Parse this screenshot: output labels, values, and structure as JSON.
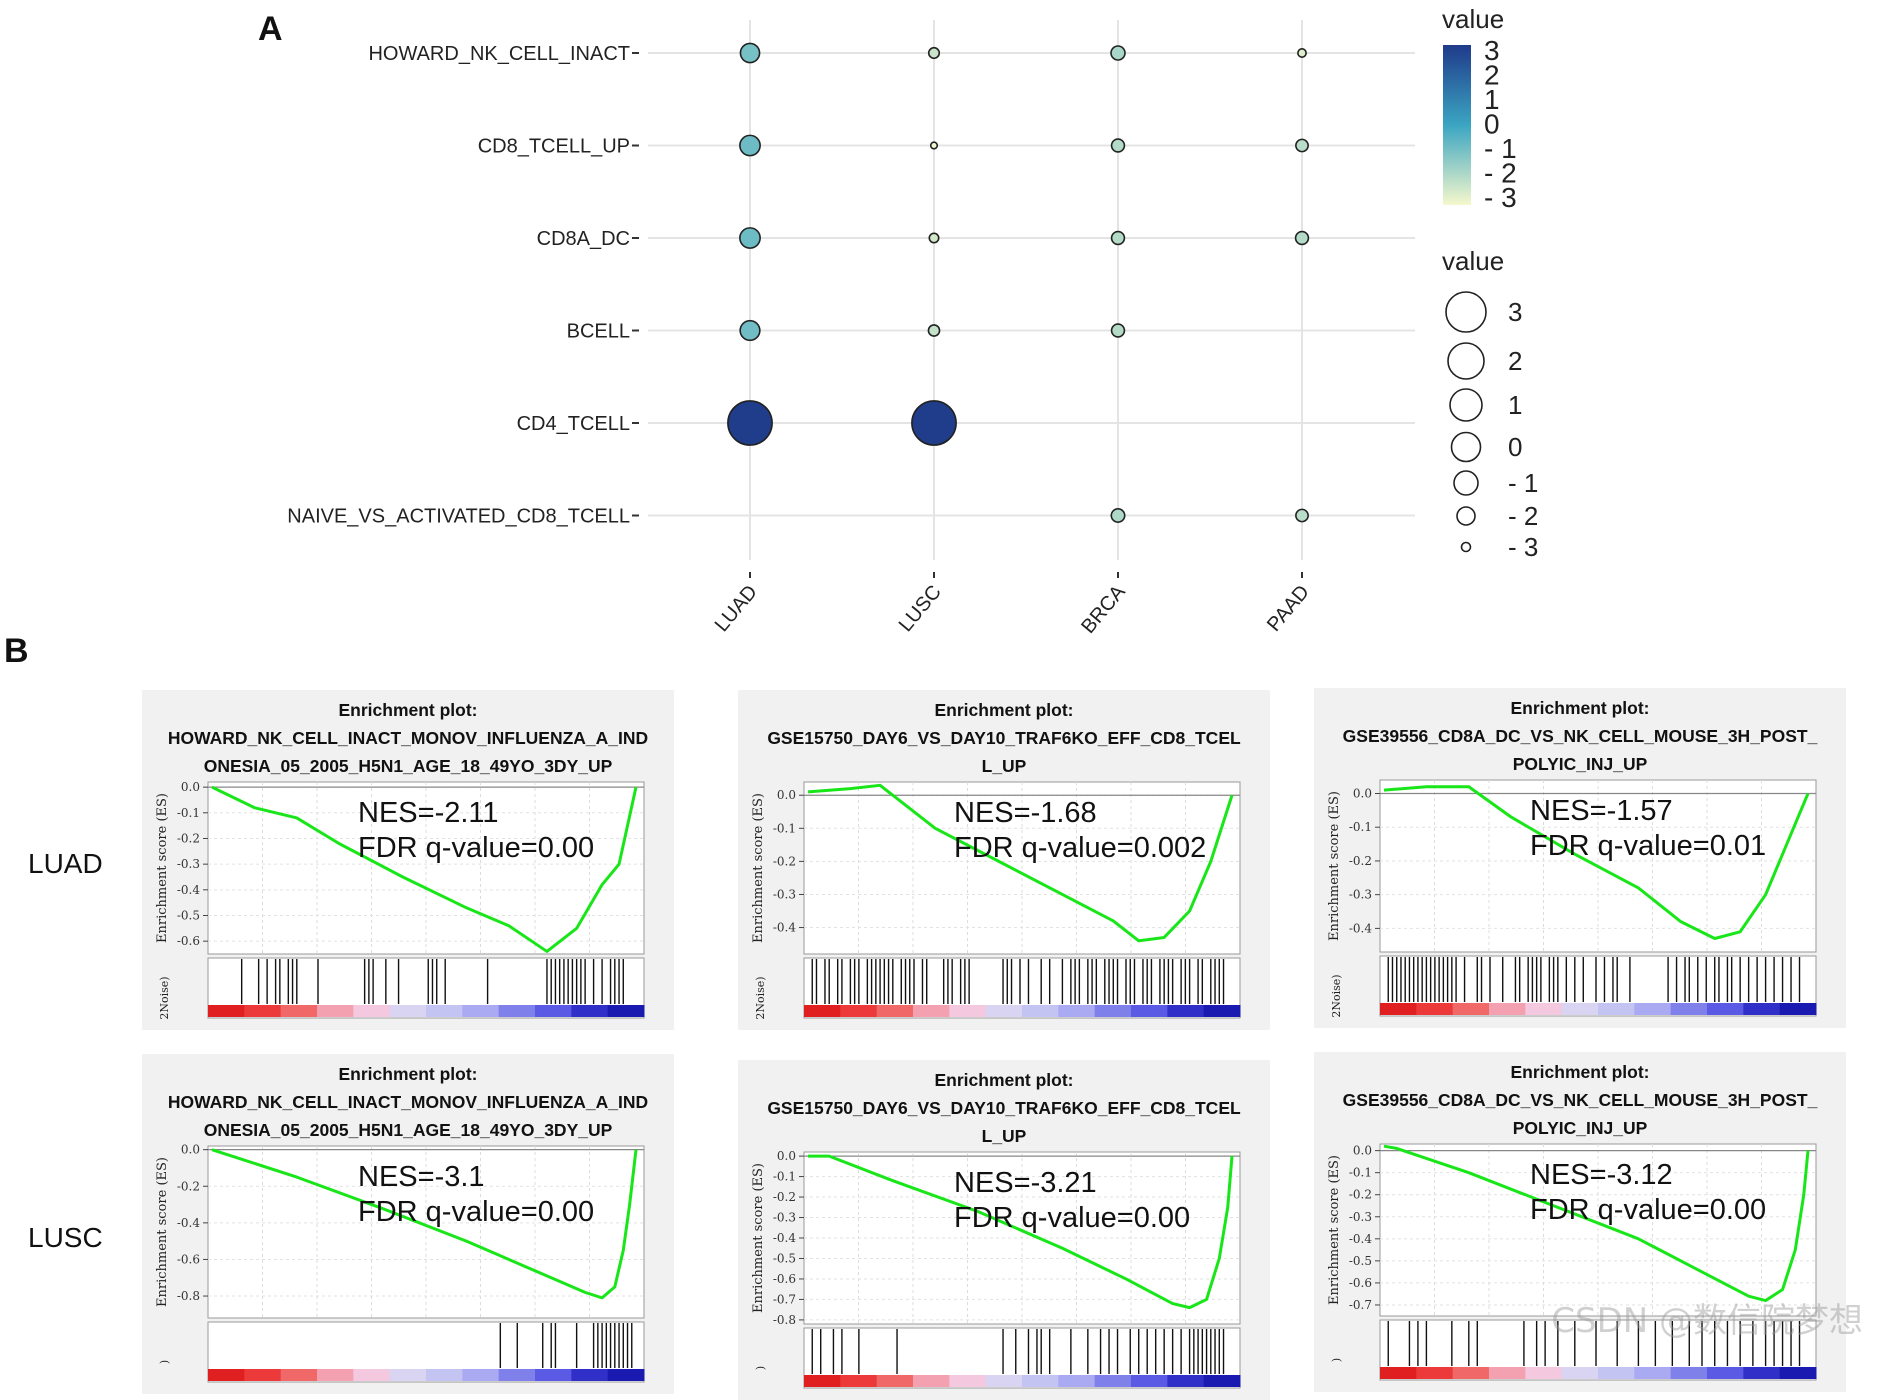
{
  "panels": {
    "a": "A",
    "b": "B"
  },
  "chart_data": [
    {
      "type": "scatter",
      "title": "",
      "categories_x": [
        "LUAD",
        "LUSC",
        "BRCA",
        "PAAD"
      ],
      "categories_y": [
        "HOWARD_NK_CELL_INACT",
        "CD8_TCELL_UP",
        "CD8A_DC",
        "BCELL",
        "CD4_TCELL",
        "NAIVE_VS_ACTIVATED_CD8_TCELL"
      ],
      "points": [
        {
          "x": "LUAD",
          "y": "HOWARD_NK_CELL_INACT",
          "value": -1.1
        },
        {
          "x": "LUSC",
          "y": "HOWARD_NK_CELL_INACT",
          "value": -2.6
        },
        {
          "x": "BRCA",
          "y": "HOWARD_NK_CELL_INACT",
          "value": -2.0
        },
        {
          "x": "PAAD",
          "y": "HOWARD_NK_CELL_INACT",
          "value": -3.0
        },
        {
          "x": "LUAD",
          "y": "CD8_TCELL_UP",
          "value": -0.9
        },
        {
          "x": "LUSC",
          "y": "CD8_TCELL_UP",
          "value": -3.3
        },
        {
          "x": "BRCA",
          "y": "CD8_TCELL_UP",
          "value": -2.2
        },
        {
          "x": "PAAD",
          "y": "CD8_TCELL_UP",
          "value": -2.3
        },
        {
          "x": "LUAD",
          "y": "CD8A_DC",
          "value": -0.9
        },
        {
          "x": "LUSC",
          "y": "CD8A_DC",
          "value": -2.8
        },
        {
          "x": "BRCA",
          "y": "CD8A_DC",
          "value": -2.2
        },
        {
          "x": "PAAD",
          "y": "CD8A_DC",
          "value": -2.2
        },
        {
          "x": "LUAD",
          "y": "BCELL",
          "value": -1.0
        },
        {
          "x": "LUSC",
          "y": "BCELL",
          "value": -2.5
        },
        {
          "x": "BRCA",
          "y": "BCELL",
          "value": -2.2
        },
        {
          "x": "LUAD",
          "y": "CD4_TCELL",
          "value": 3.3
        },
        {
          "x": "LUSC",
          "y": "CD4_TCELL",
          "value": 3.3
        },
        {
          "x": "BRCA",
          "y": "NAIVE_VS_ACTIVATED_CD8_TCELL",
          "value": -2.1
        },
        {
          "x": "PAAD",
          "y": "NAIVE_VS_ACTIVATED_CD8_TCELL",
          "value": -2.3
        }
      ],
      "color_legend": {
        "title": "value",
        "ticks": [
          "3",
          "2",
          "1",
          "0",
          "- 1",
          "- 2",
          "- 3"
        ],
        "range": [
          -3.4,
          3.4
        ],
        "low_color": "#f5f8cc",
        "mid_color": "#3ba5c2",
        "high_color": "#1f3a8a"
      },
      "size_legend": {
        "title": "value",
        "ticks": [
          "3",
          "2",
          "1",
          "0",
          "- 1",
          "- 2",
          "- 3"
        ]
      }
    },
    {
      "type": "line",
      "title_lines": [
        "Enrichment plot:",
        "HOWARD_NK_CELL_INACT_MONOV_INFLUENZA_A_IND",
        "ONESIA_05_2005_H5N1_AGE_18_49YO_3DY_UP"
      ],
      "row": "LUAD",
      "ylabel": "Enrichment score (ES)",
      "yticks": [
        "0.0",
        "-0.1",
        "-0.2",
        "-0.3",
        "-0.4",
        "-0.5",
        "-0.6"
      ],
      "ylim": [
        -0.65,
        0.02
      ],
      "es_curve": [
        [
          0,
          0.0
        ],
        [
          0.1,
          -0.08
        ],
        [
          0.2,
          -0.12
        ],
        [
          0.3,
          -0.22
        ],
        [
          0.45,
          -0.35
        ],
        [
          0.6,
          -0.47
        ],
        [
          0.7,
          -0.54
        ],
        [
          0.79,
          -0.64
        ],
        [
          0.86,
          -0.55
        ],
        [
          0.92,
          -0.38
        ],
        [
          0.96,
          -0.3
        ],
        [
          1.0,
          0.0
        ]
      ],
      "nes": "NES=-2.11",
      "fdr": "FDR q-value=0.00",
      "hits": [
        0.07,
        0.11,
        0.13,
        0.15,
        0.16,
        0.18,
        0.19,
        0.2,
        0.25,
        0.36,
        0.37,
        0.38,
        0.41,
        0.44,
        0.51,
        0.52,
        0.53,
        0.55,
        0.65,
        0.79,
        0.8,
        0.81,
        0.82,
        0.83,
        0.84,
        0.85,
        0.86,
        0.87,
        0.88,
        0.9,
        0.92,
        0.94,
        0.95,
        0.96,
        0.97
      ],
      "noise_label": "2Noise)"
    },
    {
      "type": "line",
      "title_lines": [
        "Enrichment plot:",
        "GSE15750_DAY6_VS_DAY10_TRAF6KO_EFF_CD8_TCEL",
        "L_UP"
      ],
      "row": "LUAD",
      "ylabel": "Enrichment score (ES)",
      "yticks": [
        "0.0",
        "-0.1",
        "-0.2",
        "-0.3",
        "-0.4"
      ],
      "ylim": [
        -0.48,
        0.04
      ],
      "es_curve": [
        [
          0,
          0.01
        ],
        [
          0.1,
          0.02
        ],
        [
          0.17,
          0.03
        ],
        [
          0.3,
          -0.1
        ],
        [
          0.45,
          -0.2
        ],
        [
          0.6,
          -0.3
        ],
        [
          0.72,
          -0.38
        ],
        [
          0.78,
          -0.44
        ],
        [
          0.84,
          -0.43
        ],
        [
          0.9,
          -0.35
        ],
        [
          0.95,
          -0.2
        ],
        [
          1.0,
          0.0
        ]
      ],
      "nes": "NES=-1.68",
      "fdr": "FDR q-value=0.002",
      "hits": [
        0.01,
        0.02,
        0.04,
        0.05,
        0.07,
        0.08,
        0.1,
        0.11,
        0.12,
        0.14,
        0.15,
        0.16,
        0.17,
        0.18,
        0.19,
        0.2,
        0.22,
        0.23,
        0.24,
        0.25,
        0.27,
        0.28,
        0.32,
        0.33,
        0.34,
        0.36,
        0.37,
        0.38,
        0.46,
        0.47,
        0.48,
        0.5,
        0.52,
        0.55,
        0.57,
        0.6,
        0.62,
        0.63,
        0.64,
        0.66,
        0.67,
        0.68,
        0.7,
        0.71,
        0.72,
        0.73,
        0.75,
        0.76,
        0.77,
        0.79,
        0.8,
        0.81,
        0.83,
        0.84,
        0.85,
        0.86,
        0.88,
        0.89,
        0.9,
        0.92,
        0.93,
        0.95,
        0.96,
        0.97,
        0.98
      ],
      "noise_label": "2Noise)"
    },
    {
      "type": "line",
      "title_lines": [
        "Enrichment plot:",
        "GSE39556_CD8A_DC_VS_NK_CELL_MOUSE_3H_POST_",
        "POLYIC_INJ_UP"
      ],
      "row": "LUAD",
      "ylabel": "Enrichment score (ES)",
      "yticks": [
        "0.0",
        "-0.1",
        "-0.2",
        "-0.3",
        "-0.4"
      ],
      "ylim": [
        -0.47,
        0.04
      ],
      "es_curve": [
        [
          0,
          0.01
        ],
        [
          0.1,
          0.02
        ],
        [
          0.2,
          0.02
        ],
        [
          0.3,
          -0.07
        ],
        [
          0.45,
          -0.18
        ],
        [
          0.6,
          -0.28
        ],
        [
          0.7,
          -0.38
        ],
        [
          0.78,
          -0.43
        ],
        [
          0.84,
          -0.41
        ],
        [
          0.9,
          -0.3
        ],
        [
          0.95,
          -0.15
        ],
        [
          1.0,
          0.0
        ]
      ],
      "nes": "NES=-1.57",
      "fdr": "FDR q-value=0.01",
      "hits": [
        0.01,
        0.02,
        0.03,
        0.04,
        0.05,
        0.06,
        0.07,
        0.08,
        0.09,
        0.1,
        0.11,
        0.12,
        0.13,
        0.14,
        0.15,
        0.16,
        0.17,
        0.19,
        0.22,
        0.23,
        0.25,
        0.28,
        0.31,
        0.32,
        0.34,
        0.35,
        0.36,
        0.37,
        0.39,
        0.4,
        0.41,
        0.43,
        0.45,
        0.47,
        0.5,
        0.52,
        0.54,
        0.55,
        0.58,
        0.67,
        0.69,
        0.71,
        0.72,
        0.74,
        0.76,
        0.78,
        0.79,
        0.81,
        0.82,
        0.84,
        0.86,
        0.88,
        0.9,
        0.92,
        0.94,
        0.96,
        0.98
      ],
      "noise_label": "2Noise)"
    },
    {
      "type": "line",
      "title_lines": [
        "Enrichment plot:",
        "HOWARD_NK_CELL_INACT_MONOV_INFLUENZA_A_IND",
        "ONESIA_05_2005_H5N1_AGE_18_49YO_3DY_UP"
      ],
      "row": "LUSC",
      "ylabel": "Enrichment score (ES)",
      "yticks": [
        "0.0",
        "-0.2",
        "-0.4",
        "-0.6",
        "-0.8"
      ],
      "ylim": [
        -0.92,
        0.02
      ],
      "es_curve": [
        [
          0,
          0.0
        ],
        [
          0.2,
          -0.15
        ],
        [
          0.4,
          -0.32
        ],
        [
          0.6,
          -0.5
        ],
        [
          0.75,
          -0.65
        ],
        [
          0.88,
          -0.78
        ],
        [
          0.92,
          -0.81
        ],
        [
          0.95,
          -0.75
        ],
        [
          0.97,
          -0.55
        ],
        [
          0.985,
          -0.3
        ],
        [
          1.0,
          0.0
        ]
      ],
      "nes": "NES=-3.1",
      "fdr": "FDR q-value=0.00",
      "hits": [
        0.68,
        0.72,
        0.78,
        0.8,
        0.81,
        0.86,
        0.9,
        0.91,
        0.92,
        0.93,
        0.94,
        0.95,
        0.96,
        0.97,
        0.98,
        0.99
      ],
      "noise_label": ")"
    },
    {
      "type": "line",
      "title_lines": [
        "Enrichment plot:",
        "GSE15750_DAY6_VS_DAY10_TRAF6KO_EFF_CD8_TCEL",
        "L_UP"
      ],
      "row": "LUSC",
      "ylabel": "Enrichment score (ES)",
      "yticks": [
        "0.0",
        "-0.1",
        "-0.2",
        "-0.3",
        "-0.4",
        "-0.5",
        "-0.6",
        "-0.7",
        "-0.8"
      ],
      "ylim": [
        -0.82,
        0.02
      ],
      "es_curve": [
        [
          0,
          0.0
        ],
        [
          0.05,
          0.0
        ],
        [
          0.2,
          -0.12
        ],
        [
          0.4,
          -0.27
        ],
        [
          0.6,
          -0.45
        ],
        [
          0.75,
          -0.6
        ],
        [
          0.86,
          -0.72
        ],
        [
          0.9,
          -0.74
        ],
        [
          0.94,
          -0.7
        ],
        [
          0.97,
          -0.5
        ],
        [
          0.99,
          -0.25
        ],
        [
          1.0,
          0.0
        ]
      ],
      "nes": "NES=-3.21",
      "fdr": "FDR q-value=0.00",
      "hits": [
        0.01,
        0.03,
        0.06,
        0.08,
        0.12,
        0.21,
        0.46,
        0.49,
        0.52,
        0.54,
        0.55,
        0.57,
        0.62,
        0.66,
        0.69,
        0.71,
        0.73,
        0.76,
        0.78,
        0.8,
        0.82,
        0.84,
        0.86,
        0.88,
        0.9,
        0.91,
        0.92,
        0.93,
        0.94,
        0.95,
        0.96,
        0.97,
        0.98
      ],
      "noise_label": ")"
    },
    {
      "type": "line",
      "title_lines": [
        "Enrichment plot:",
        "GSE39556_CD8A_DC_VS_NK_CELL_MOUSE_3H_POST_",
        "POLYIC_INJ_UP"
      ],
      "row": "LUSC",
      "ylabel": "Enrichment score (ES)",
      "yticks": [
        "0.0",
        "-0.1",
        "-0.2",
        "-0.3",
        "-0.4",
        "-0.5",
        "-0.6",
        "-0.7"
      ],
      "ylim": [
        -0.75,
        0.03
      ],
      "es_curve": [
        [
          0,
          0.02
        ],
        [
          0.03,
          0.01
        ],
        [
          0.2,
          -0.1
        ],
        [
          0.4,
          -0.25
        ],
        [
          0.6,
          -0.4
        ],
        [
          0.75,
          -0.55
        ],
        [
          0.86,
          -0.66
        ],
        [
          0.9,
          -0.68
        ],
        [
          0.94,
          -0.63
        ],
        [
          0.97,
          -0.45
        ],
        [
          0.99,
          -0.2
        ],
        [
          1.0,
          0.0
        ]
      ],
      "nes": "NES=-3.12",
      "fdr": "FDR q-value=0.00",
      "hits": [
        0.01,
        0.06,
        0.08,
        0.1,
        0.16,
        0.2,
        0.22,
        0.33,
        0.36,
        0.38,
        0.41,
        0.45,
        0.5,
        0.55,
        0.6,
        0.64,
        0.68,
        0.72,
        0.75,
        0.78,
        0.81,
        0.84,
        0.87,
        0.9,
        0.92,
        0.94,
        0.96,
        0.98
      ],
      "noise_label": ")"
    }
  ],
  "row_labels": [
    "LUAD",
    "LUSC"
  ],
  "watermark": "CSDN @数信院梦想"
}
